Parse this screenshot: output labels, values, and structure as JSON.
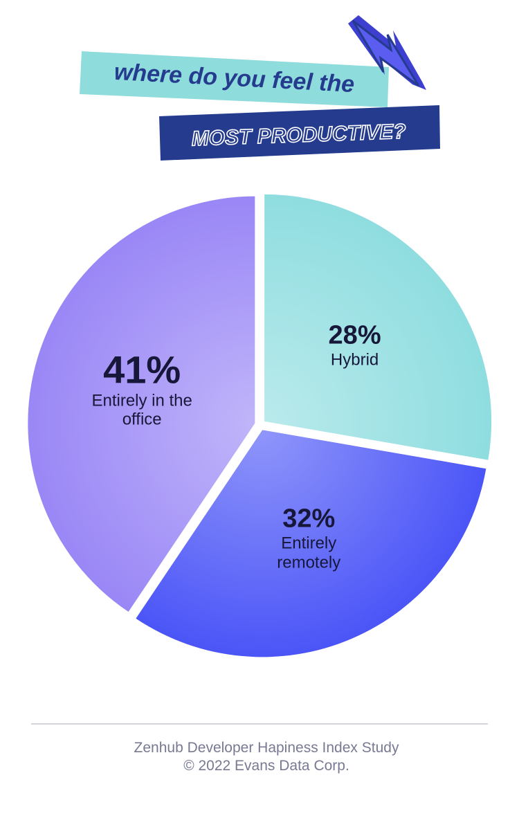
{
  "chart_data": {
    "type": "pie",
    "title": "where do you feel the",
    "subtitle": "MOST PRODUCTIVE?",
    "categories": [
      "Hybrid",
      "Entirely remotely",
      "Entirely in the office"
    ],
    "values": [
      28,
      32,
      41
    ],
    "value_labels": [
      "28%",
      "32%",
      "41%"
    ],
    "colors": [
      "#8fdde0",
      "#4b55f7",
      "#9a87f6"
    ],
    "source": "Zenhub Developer Hapiness Index Study © 2022 Evans Data Corp."
  }
}
